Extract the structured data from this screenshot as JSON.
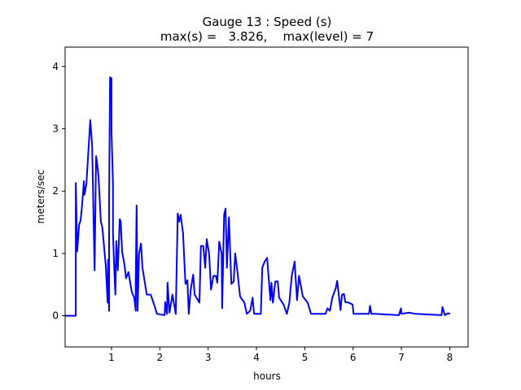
{
  "chart_data": {
    "type": "line",
    "title": "Gauge 13 : Speed (s)",
    "subtitle": "max(s) =   3.826,    max(level) = 7",
    "xlabel": "hours",
    "ylabel": "meters/sec",
    "xlim": [
      0.04,
      8.38
    ],
    "ylim": [
      -0.5,
      4.31
    ],
    "xticks": [
      1,
      2,
      3,
      4,
      5,
      6,
      7,
      8
    ],
    "yticks": [
      0,
      1,
      2,
      3,
      4
    ],
    "grid": false,
    "line_color": "#0000ff",
    "series": [
      {
        "name": "speed",
        "x": [
          0.04,
          0.26,
          0.26,
          0.29,
          0.33,
          0.36,
          0.39,
          0.43,
          0.44,
          0.48,
          0.56,
          0.6,
          0.65,
          0.68,
          0.7,
          0.73,
          0.78,
          0.81,
          0.85,
          0.88,
          0.92,
          0.93,
          0.95,
          0.95,
          0.97,
          1.0,
          1.0,
          1.03,
          1.03,
          1.05,
          1.08,
          1.1,
          1.13,
          1.17,
          1.19,
          1.22,
          1.27,
          1.3,
          1.35,
          1.42,
          1.47,
          1.5,
          1.5,
          1.52,
          1.54,
          1.57,
          1.61,
          1.64,
          1.73,
          1.81,
          1.89,
          1.94,
          2.1,
          2.11,
          2.15,
          2.16,
          2.2,
          2.26,
          2.33,
          2.37,
          2.4,
          2.43,
          2.48,
          2.53,
          2.57,
          2.6,
          2.64,
          2.69,
          2.72,
          2.82,
          2.85,
          2.9,
          2.94,
          2.97,
          3.02,
          3.06,
          3.11,
          3.16,
          3.19,
          3.23,
          3.28,
          3.29,
          3.33,
          3.36,
          3.39,
          3.43,
          3.48,
          3.53,
          3.56,
          3.61,
          3.66,
          3.75,
          3.8,
          3.87,
          3.92,
          3.95,
          4.09,
          4.12,
          4.17,
          4.22,
          4.29,
          4.31,
          4.34,
          4.39,
          4.44,
          4.47,
          4.56,
          4.63,
          4.68,
          4.73,
          4.79,
          4.84,
          4.88,
          4.96,
          5.06,
          5.13,
          5.43,
          5.47,
          5.52,
          5.57,
          5.64,
          5.67,
          5.74,
          5.77,
          5.81,
          5.84,
          5.91,
          5.99,
          6.01,
          6.33,
          6.35,
          6.38,
          6.45,
          6.95,
          6.99,
          7.0,
          7.16,
          7.29,
          7.83,
          7.85,
          7.9,
          7.96,
          8.01
        ],
        "y": [
          0,
          0,
          2.13,
          1.03,
          1.46,
          1.53,
          1.77,
          2.16,
          1.94,
          2.11,
          3.14,
          2.72,
          0.73,
          2.56,
          2.46,
          2.24,
          1.51,
          1.42,
          1.07,
          0.81,
          0.21,
          0.9,
          0.08,
          1.85,
          3.826,
          3.81,
          2.95,
          2.11,
          1.33,
          0.9,
          0.34,
          1.2,
          0.73,
          1.55,
          1.51,
          1.03,
          0.81,
          0.6,
          0.7,
          0.38,
          0.29,
          0.08,
          0.51,
          1.77,
          0.08,
          0.99,
          1.16,
          0.77,
          0.34,
          0.34,
          0.16,
          0.03,
          0.01,
          0.22,
          0.03,
          0.53,
          0.05,
          0.34,
          0.03,
          1.64,
          1.51,
          1.62,
          1.33,
          0.51,
          0.57,
          0.03,
          0.42,
          0.66,
          0.34,
          0.21,
          1.12,
          1.12,
          0.77,
          1.23,
          0.99,
          0.42,
          0.64,
          0.64,
          0.53,
          1.19,
          0.99,
          0.12,
          1.62,
          1.72,
          0.77,
          1.58,
          0.51,
          0.55,
          1.0,
          0.68,
          0.31,
          0.21,
          0.03,
          0.08,
          0.29,
          0.03,
          0.03,
          0.77,
          0.87,
          0.93,
          0.25,
          0.53,
          0.21,
          0.55,
          0.55,
          0.29,
          0.18,
          0.03,
          0.21,
          0.64,
          0.87,
          0.25,
          0.64,
          0.31,
          0.21,
          0.03,
          0.03,
          0.12,
          0.08,
          0.29,
          0.44,
          0.56,
          0.09,
          0.34,
          0.35,
          0.22,
          0.21,
          0.18,
          0.03,
          0.03,
          0.16,
          0.03,
          0.03,
          0.01,
          0.12,
          0.03,
          0.05,
          0.03,
          0.01,
          0.14,
          0.01,
          0.04,
          0.03
        ]
      }
    ]
  }
}
